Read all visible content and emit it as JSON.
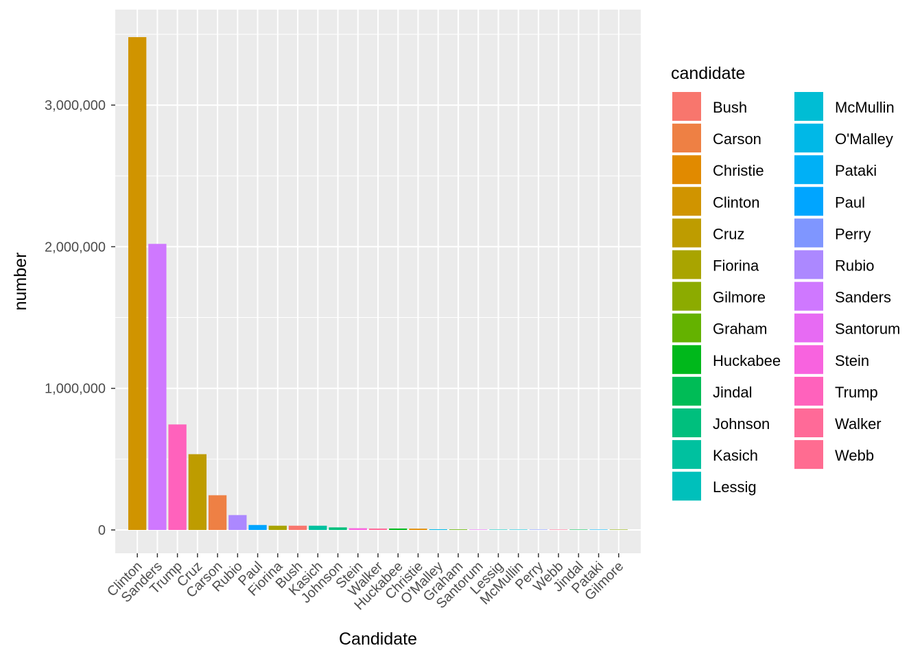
{
  "chart_data": {
    "type": "bar",
    "xlabel": "Candidate",
    "ylabel": "number",
    "ylim": [
      -170000,
      3650000
    ],
    "yticks": [
      0,
      1000000,
      2000000,
      3000000
    ],
    "ytick_labels": [
      "0",
      "1,000,000",
      "2,000,000",
      "3,000,000"
    ],
    "grid": true,
    "legend_title": "candidate",
    "legend_position": "right",
    "categories": [
      "Clinton",
      "Sanders",
      "Trump",
      "Cruz",
      "Carson",
      "Rubio",
      "Paul",
      "Fiorina",
      "Bush",
      "Kasich",
      "Johnson",
      "Stein",
      "Walker",
      "Huckabee",
      "Christie",
      "O'Malley",
      "Graham",
      "Santorum",
      "Lessig",
      "McMullin",
      "Perry",
      "Webb",
      "Jindal",
      "Pataki",
      "Gilmore"
    ],
    "values": [
      3480000,
      2020000,
      745000,
      535000,
      245000,
      105000,
      35000,
      30000,
      30000,
      30000,
      18000,
      12000,
      10000,
      10000,
      9000,
      5000,
      4000,
      3000,
      2000,
      2000,
      2000,
      2000,
      1500,
      500,
      300
    ],
    "legend": [
      {
        "label": "Bush",
        "color": "#F8766D"
      },
      {
        "label": "Carson",
        "color": "#EE8044"
      },
      {
        "label": "Christie",
        "color": "#E18A00"
      },
      {
        "label": "Clinton",
        "color": "#D09400"
      },
      {
        "label": "Cruz",
        "color": "#BE9C00"
      },
      {
        "label": "Fiorina",
        "color": "#A9A400"
      },
      {
        "label": "Gilmore",
        "color": "#8CAB00"
      },
      {
        "label": "Graham",
        "color": "#64B200"
      },
      {
        "label": "Huckabee",
        "color": "#00B81B"
      },
      {
        "label": "Jindal",
        "color": "#00BC56"
      },
      {
        "label": "Johnson",
        "color": "#00BF7D"
      },
      {
        "label": "Kasich",
        "color": "#00C19F"
      },
      {
        "label": "Lessig",
        "color": "#00C0BB"
      },
      {
        "label": "McMullin",
        "color": "#00BDD4"
      },
      {
        "label": "O'Malley",
        "color": "#00B8E7"
      },
      {
        "label": "Pataki",
        "color": "#00B0F6"
      },
      {
        "label": "Paul",
        "color": "#00A5FF"
      },
      {
        "label": "Perry",
        "color": "#7F96FF"
      },
      {
        "label": "Rubio",
        "color": "#AC88FF"
      },
      {
        "label": "Sanders",
        "color": "#CF78FF"
      },
      {
        "label": "Santorum",
        "color": "#E76BF3"
      },
      {
        "label": "Stein",
        "color": "#F863DF"
      },
      {
        "label": "Trump",
        "color": "#FF62BC"
      },
      {
        "label": "Walker",
        "color": "#FF6A98"
      },
      {
        "label": "Webb",
        "color": "#FF6C91"
      }
    ]
  }
}
